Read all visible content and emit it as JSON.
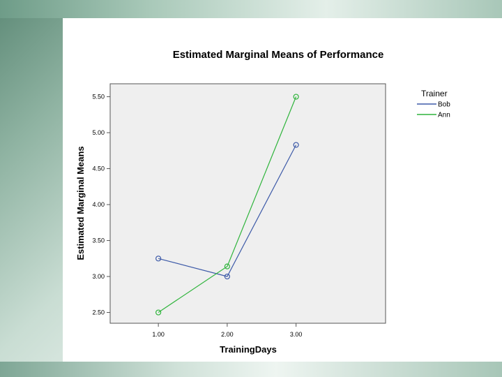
{
  "chart_data": {
    "type": "line",
    "title": "Estimated Marginal Means of Performance",
    "xlabel": "TrainingDays",
    "ylabel": "Estimated Marginal Means",
    "x": [
      1.0,
      2.0,
      3.0
    ],
    "x_tick_labels": [
      "1.00",
      "2.00",
      "3.00"
    ],
    "xlim": [
      0.3,
      4.3
    ],
    "y_ticks": [
      2.5,
      3.0,
      3.5,
      4.0,
      4.5,
      5.0,
      5.5
    ],
    "y_tick_labels": [
      "2.50",
      "3.00",
      "3.50",
      "4.00",
      "4.50",
      "5.00",
      "5.50"
    ],
    "ylim": [
      2.35,
      5.68
    ],
    "grid": false,
    "legend": {
      "title": "Trainer",
      "placement": "right"
    },
    "series": [
      {
        "name": "Bob",
        "values": [
          3.25,
          3.0,
          4.83
        ],
        "color": "#3d5aa8"
      },
      {
        "name": "Ann",
        "values": [
          2.5,
          3.14,
          5.5
        ],
        "color": "#2fb43c"
      }
    ],
    "plot_background": "#efefef"
  }
}
